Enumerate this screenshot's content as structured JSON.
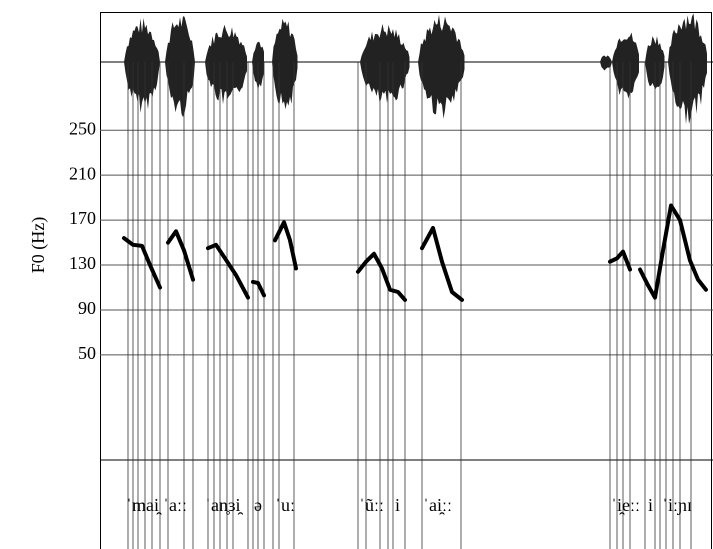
{
  "chart_data": {
    "type": "line",
    "y_label": "F0 (Hz)",
    "ylim": [
      -40,
      260
    ],
    "yticks": [
      50,
      90,
      130,
      170,
      210,
      250
    ],
    "grid": true,
    "xlim": [
      0,
      613
    ],
    "color": "#000000",
    "x": [
      24,
      33,
      42,
      50,
      60,
      null,
      68,
      76,
      84,
      93,
      null,
      108,
      116,
      125,
      136,
      148,
      null,
      153,
      158,
      164,
      null,
      175,
      184,
      190,
      196,
      null,
      258,
      266,
      274,
      282,
      290,
      298,
      305,
      null,
      322,
      333,
      342,
      352,
      362,
      null,
      510,
      517,
      523,
      530,
      null,
      540,
      548,
      555,
      563,
      571,
      580,
      590,
      598,
      606
    ],
    "values": [
      154,
      148,
      147,
      130,
      110,
      null,
      150,
      160,
      143,
      117,
      null,
      145,
      148,
      136,
      121,
      101,
      null,
      115,
      114,
      103,
      null,
      152,
      168,
      152,
      127,
      null,
      124,
      133,
      140,
      127,
      108,
      106,
      99,
      null,
      145,
      163,
      133,
      106,
      99,
      null,
      133,
      136,
      142,
      126,
      null,
      126,
      112,
      101,
      143,
      183,
      170,
      134,
      117,
      108
    ],
    "boundaries": [
      28,
      33,
      38,
      45,
      52,
      60,
      68,
      84,
      93,
      108,
      114,
      120,
      127,
      133,
      148,
      153,
      158,
      164,
      173,
      179,
      194,
      258,
      266,
      280,
      288,
      293,
      305,
      322,
      361,
      510,
      517,
      523,
      530,
      545,
      555,
      560,
      566,
      573,
      580,
      591
    ],
    "labels": [
      {
        "text": "ˈmai̯",
        "x": 26
      },
      {
        "text": "ˈaːː",
        "x": 63
      },
      {
        "text": "ˈan̥ɜi̯",
        "x": 105
      },
      {
        "text": "ə",
        "x": 154
      },
      {
        "text": "ˈuː",
        "x": 175
      },
      {
        "text": "ˈũːː",
        "x": 259
      },
      {
        "text": "i",
        "x": 295
      },
      {
        "text": "ˈai̯ːː",
        "x": 323
      },
      {
        "text": "ˈi̯eːː",
        "x": 511
      },
      {
        "text": "i",
        "x": 548
      },
      {
        "text": "ˈiːɲɪ",
        "x": 562
      }
    ]
  }
}
